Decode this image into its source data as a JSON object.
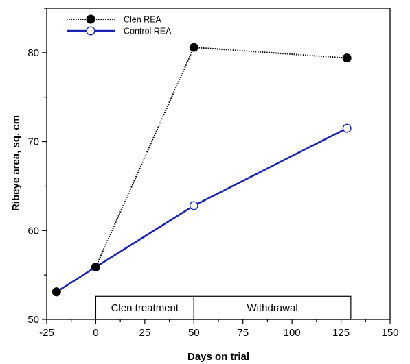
{
  "chart_data": {
    "type": "line",
    "xlabel": "Days on trial",
    "ylabel": "Ribeye area, sq. cm",
    "xlim": [
      -25,
      150
    ],
    "ylim": [
      50,
      85
    ],
    "xticks": [
      -25,
      0,
      25,
      50,
      75,
      100,
      125,
      150
    ],
    "yticks": [
      50,
      60,
      70,
      80
    ],
    "xtick_labels": [
      "-25",
      "0",
      "25",
      "50",
      "75",
      "100",
      "125",
      "150"
    ],
    "ytick_labels": [
      "50",
      "60",
      "70",
      "80"
    ],
    "grid": false,
    "legend_position": "top-left",
    "series": [
      {
        "name": "Clen REA",
        "color": "#000000",
        "line_style": "dotted",
        "marker": "filled-circle",
        "x": [
          -20,
          0,
          50,
          128
        ],
        "y": [
          53.1,
          55.9,
          80.6,
          79.4
        ]
      },
      {
        "name": "Control REA",
        "color": "#1a22b8",
        "line_style": "solid",
        "marker": "open-circle",
        "x": [
          -20,
          0,
          50,
          128
        ],
        "y": [
          53.1,
          55.9,
          62.8,
          71.5
        ]
      }
    ],
    "phases": [
      {
        "label": "Clen treatment",
        "x_start": 0,
        "x_end": 50
      },
      {
        "label": "Withdrawal",
        "x_start": 50,
        "x_end": 130
      }
    ],
    "phase_band_y": [
      50,
      52.6
    ]
  }
}
